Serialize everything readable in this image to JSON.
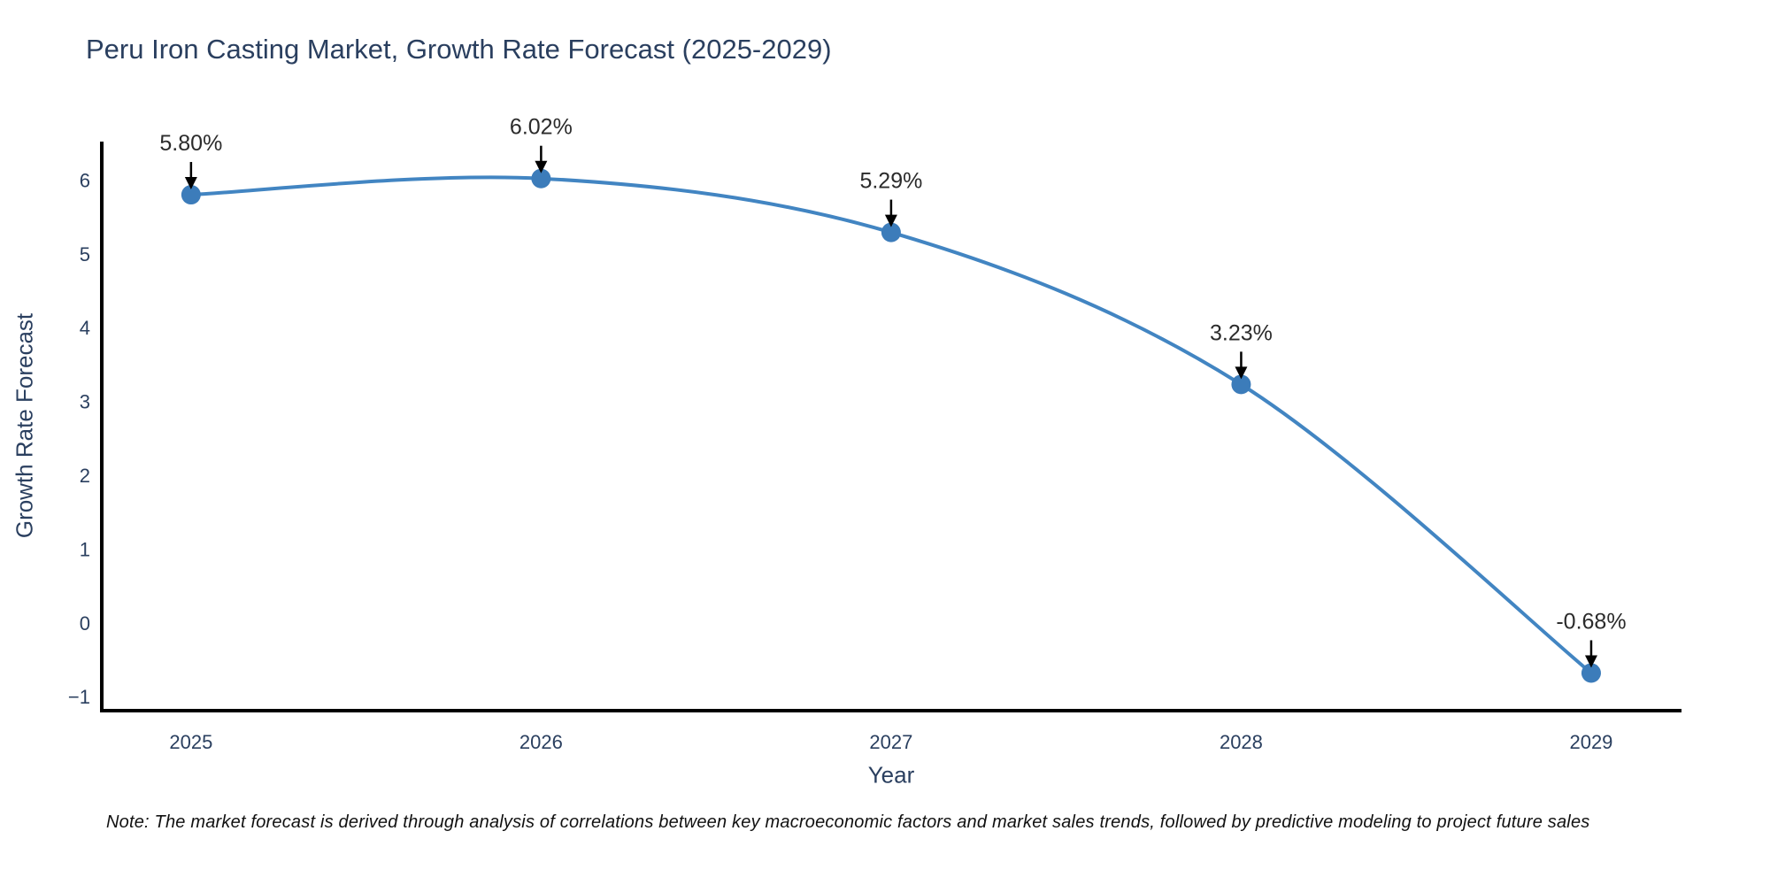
{
  "figure": {
    "note": "Note: The market forecast is derived through analysis of correlations between key macroeconomic factors and market sales trends, followed by predictive modeling to project future sales"
  },
  "chart_data": {
    "type": "line",
    "title": "Peru Iron Casting Market, Growth Rate Forecast (2025-2029)",
    "xlabel": "Year",
    "ylabel": "Growth Rate Forecast",
    "line_shape": "spline",
    "grid": false,
    "legend": "none",
    "x": [
      2025,
      2026,
      2027,
      2028,
      2029
    ],
    "values": [
      5.8,
      6.02,
      5.29,
      3.23,
      -0.68
    ],
    "point_labels": [
      "5.80%",
      "6.02%",
      "5.29%",
      "3.23%",
      "-0.68%"
    ],
    "xticks": {
      "values": [
        2025,
        2026,
        2027,
        2028,
        2029
      ],
      "labels": [
        "2025",
        "2026",
        "2027",
        "2028",
        "2029"
      ]
    },
    "yticks": {
      "values": [
        -1,
        0,
        1,
        2,
        3,
        4,
        5,
        6
      ],
      "labels": [
        "−1",
        "0",
        "1",
        "2",
        "3",
        "4",
        "5",
        "6"
      ]
    },
    "xlim": [
      2024.745,
      2029.258
    ],
    "ylim": [
      -1.19,
      6.52
    ],
    "colors": {
      "line": "#4285c2",
      "marker": "#3c7cba",
      "axis": "#000000",
      "arrow": "#000000",
      "title": "#2a3f5f",
      "tick": "#2a3f5f",
      "annotation": "#2b2b2b"
    }
  }
}
